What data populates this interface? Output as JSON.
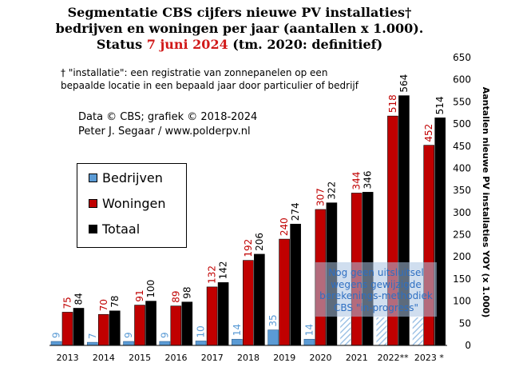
{
  "title": {
    "line1": "Segmentatie CBS cijfers nieuwe PV installaties†",
    "line2": "bedrijven en woningen per jaar (aantallen x 1.000).",
    "line3_prefix": "Status",
    "line3_date": "7 juni 2024",
    "line3_suffix": "(tm. 2020: definitief)"
  },
  "footnote": {
    "line1": "† \"installatie\": een registratie van zonnepanelen op een",
    "line2": "bepaalde locatie in een bepaald jaar door particulier of bedrijf"
  },
  "credits": {
    "line1": "Data © CBS; grafiek © 2018-2024",
    "line2": "Peter J. Segaar / www.polderpv.nl"
  },
  "notice": {
    "line1": "Nog geen uitsluitsel",
    "line2": "wegens gewijzigde",
    "line3": "berekenings-methodiek",
    "line4": "CBS \"in-progress\""
  },
  "colors": {
    "bedrijven": "#5b9bd5",
    "woningen": "#c00000",
    "totaal": "#000000",
    "title_accent": "#d11919",
    "notice_text": "#2e6fc2",
    "hatch": "#9fc3e6"
  },
  "chart_data": {
    "type": "bar",
    "categories": [
      "2013",
      "2014",
      "2015",
      "2016",
      "2017",
      "2018",
      "2019",
      "2020",
      "2021",
      "2022**",
      "2023 *"
    ],
    "series": [
      {
        "name": "Bedrijven",
        "values": [
          9,
          7,
          9,
          9,
          10,
          14,
          35,
          14,
          null,
          null,
          null
        ],
        "style": "solid, last three unknown (hatched placeholders)"
      },
      {
        "name": "Woningen",
        "values": [
          75,
          70,
          91,
          89,
          132,
          192,
          240,
          307,
          344,
          518,
          452
        ]
      },
      {
        "name": "Totaal",
        "values": [
          84,
          78,
          100,
          98,
          142,
          206,
          274,
          322,
          346,
          564,
          514
        ]
      }
    ],
    "ylabel": "Aantallen nieuwe PV installaties YOY (x 1.000)",
    "yaxis_side": "right",
    "ylim": [
      0,
      650
    ],
    "yticks": [
      0,
      50,
      100,
      150,
      200,
      250,
      300,
      350,
      400,
      450,
      500,
      550,
      600,
      650
    ],
    "legend_placement": "left-middle",
    "grid": false
  }
}
